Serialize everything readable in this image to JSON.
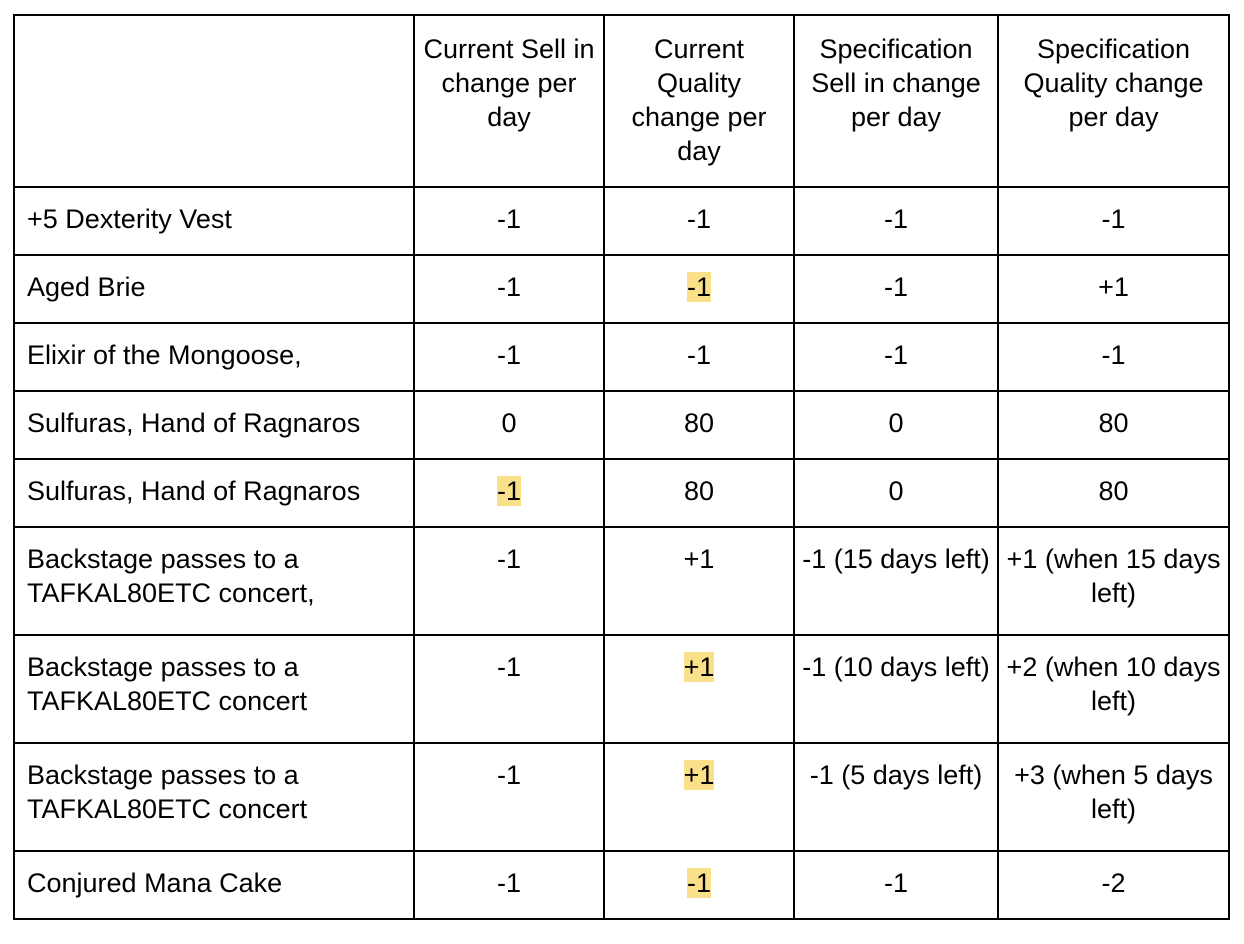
{
  "headers": [
    "",
    "Current Sell in change per day",
    "Current Quality change per day",
    "Specification Sell in change per day",
    "Specification Quality change per day"
  ],
  "rows": [
    {
      "name": "+5 Dexterity Vest",
      "cur_sell": "-1",
      "cur_quality": "-1",
      "spec_sell": "-1",
      "spec_quality": "-1"
    },
    {
      "name": "Aged Brie",
      "cur_sell": "-1",
      "cur_quality": "-1",
      "spec_sell": "-1",
      "spec_quality": "+1"
    },
    {
      "name": "Elixir of the Mongoose,",
      "cur_sell": "-1",
      "cur_quality": "-1",
      "spec_sell": "-1",
      "spec_quality": "-1"
    },
    {
      "name": "Sulfuras, Hand of Ragnaros",
      "cur_sell": "0",
      "cur_quality": "80",
      "spec_sell": "0",
      "spec_quality": "80"
    },
    {
      "name": "Sulfuras, Hand of Ragnaros",
      "cur_sell": "-1",
      "cur_quality": "80",
      "spec_sell": "0",
      "spec_quality": "80"
    },
    {
      "name": "Backstage passes to a TAFKAL80ETC concert,",
      "cur_sell": "-1",
      "cur_quality": "+1",
      "spec_sell": "-1 (15 days left)",
      "spec_quality": "+1 (when 15 days left)"
    },
    {
      "name": "Backstage passes to a TAFKAL80ETC concert",
      "cur_sell": "-1",
      "cur_quality": "+1",
      "spec_sell": "-1 (10 days left)",
      "spec_quality": "+2 (when 10 days left)"
    },
    {
      "name": "Backstage passes to a TAFKAL80ETC concert",
      "cur_sell": "-1",
      "cur_quality": "+1",
      "spec_sell": "-1 (5 days left)",
      "spec_quality": "+3 (when 5 days left)"
    },
    {
      "name": "Conjured Mana Cake",
      "cur_sell": "-1",
      "cur_quality": "-1",
      "spec_sell": "-1",
      "spec_quality": "-2"
    }
  ],
  "highlight_color": "#fbe08a"
}
